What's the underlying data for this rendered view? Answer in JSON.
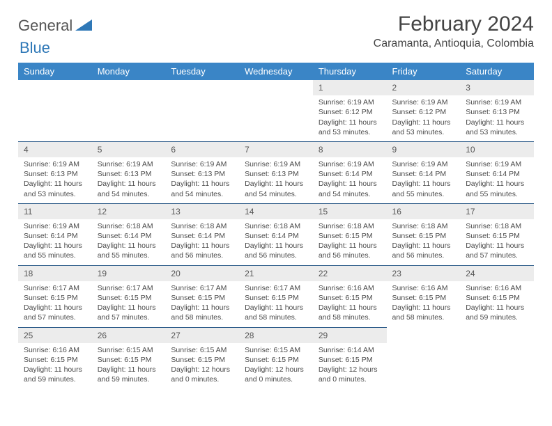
{
  "brand": {
    "word1": "General",
    "word2": "Blue"
  },
  "title": "February 2024",
  "location": "Caramanta, Antioquia, Colombia",
  "colors": {
    "header_bg": "#3a85c6",
    "header_text": "#ffffff",
    "daynum_bg": "#ececec",
    "row_divider": "#2f5d8a",
    "body_text": "#4a4a4a",
    "logo_gray": "#555555",
    "logo_blue": "#2f78b7"
  },
  "weekdays": [
    "Sunday",
    "Monday",
    "Tuesday",
    "Wednesday",
    "Thursday",
    "Friday",
    "Saturday"
  ],
  "weeks": [
    [
      null,
      null,
      null,
      null,
      {
        "n": "1",
        "sr": "Sunrise: 6:19 AM",
        "ss": "Sunset: 6:12 PM",
        "dl": "Daylight: 11 hours and 53 minutes."
      },
      {
        "n": "2",
        "sr": "Sunrise: 6:19 AM",
        "ss": "Sunset: 6:12 PM",
        "dl": "Daylight: 11 hours and 53 minutes."
      },
      {
        "n": "3",
        "sr": "Sunrise: 6:19 AM",
        "ss": "Sunset: 6:13 PM",
        "dl": "Daylight: 11 hours and 53 minutes."
      }
    ],
    [
      {
        "n": "4",
        "sr": "Sunrise: 6:19 AM",
        "ss": "Sunset: 6:13 PM",
        "dl": "Daylight: 11 hours and 53 minutes."
      },
      {
        "n": "5",
        "sr": "Sunrise: 6:19 AM",
        "ss": "Sunset: 6:13 PM",
        "dl": "Daylight: 11 hours and 54 minutes."
      },
      {
        "n": "6",
        "sr": "Sunrise: 6:19 AM",
        "ss": "Sunset: 6:13 PM",
        "dl": "Daylight: 11 hours and 54 minutes."
      },
      {
        "n": "7",
        "sr": "Sunrise: 6:19 AM",
        "ss": "Sunset: 6:13 PM",
        "dl": "Daylight: 11 hours and 54 minutes."
      },
      {
        "n": "8",
        "sr": "Sunrise: 6:19 AM",
        "ss": "Sunset: 6:14 PM",
        "dl": "Daylight: 11 hours and 54 minutes."
      },
      {
        "n": "9",
        "sr": "Sunrise: 6:19 AM",
        "ss": "Sunset: 6:14 PM",
        "dl": "Daylight: 11 hours and 55 minutes."
      },
      {
        "n": "10",
        "sr": "Sunrise: 6:19 AM",
        "ss": "Sunset: 6:14 PM",
        "dl": "Daylight: 11 hours and 55 minutes."
      }
    ],
    [
      {
        "n": "11",
        "sr": "Sunrise: 6:19 AM",
        "ss": "Sunset: 6:14 PM",
        "dl": "Daylight: 11 hours and 55 minutes."
      },
      {
        "n": "12",
        "sr": "Sunrise: 6:18 AM",
        "ss": "Sunset: 6:14 PM",
        "dl": "Daylight: 11 hours and 55 minutes."
      },
      {
        "n": "13",
        "sr": "Sunrise: 6:18 AM",
        "ss": "Sunset: 6:14 PM",
        "dl": "Daylight: 11 hours and 56 minutes."
      },
      {
        "n": "14",
        "sr": "Sunrise: 6:18 AM",
        "ss": "Sunset: 6:14 PM",
        "dl": "Daylight: 11 hours and 56 minutes."
      },
      {
        "n": "15",
        "sr": "Sunrise: 6:18 AM",
        "ss": "Sunset: 6:15 PM",
        "dl": "Daylight: 11 hours and 56 minutes."
      },
      {
        "n": "16",
        "sr": "Sunrise: 6:18 AM",
        "ss": "Sunset: 6:15 PM",
        "dl": "Daylight: 11 hours and 56 minutes."
      },
      {
        "n": "17",
        "sr": "Sunrise: 6:18 AM",
        "ss": "Sunset: 6:15 PM",
        "dl": "Daylight: 11 hours and 57 minutes."
      }
    ],
    [
      {
        "n": "18",
        "sr": "Sunrise: 6:17 AM",
        "ss": "Sunset: 6:15 PM",
        "dl": "Daylight: 11 hours and 57 minutes."
      },
      {
        "n": "19",
        "sr": "Sunrise: 6:17 AM",
        "ss": "Sunset: 6:15 PM",
        "dl": "Daylight: 11 hours and 57 minutes."
      },
      {
        "n": "20",
        "sr": "Sunrise: 6:17 AM",
        "ss": "Sunset: 6:15 PM",
        "dl": "Daylight: 11 hours and 58 minutes."
      },
      {
        "n": "21",
        "sr": "Sunrise: 6:17 AM",
        "ss": "Sunset: 6:15 PM",
        "dl": "Daylight: 11 hours and 58 minutes."
      },
      {
        "n": "22",
        "sr": "Sunrise: 6:16 AM",
        "ss": "Sunset: 6:15 PM",
        "dl": "Daylight: 11 hours and 58 minutes."
      },
      {
        "n": "23",
        "sr": "Sunrise: 6:16 AM",
        "ss": "Sunset: 6:15 PM",
        "dl": "Daylight: 11 hours and 58 minutes."
      },
      {
        "n": "24",
        "sr": "Sunrise: 6:16 AM",
        "ss": "Sunset: 6:15 PM",
        "dl": "Daylight: 11 hours and 59 minutes."
      }
    ],
    [
      {
        "n": "25",
        "sr": "Sunrise: 6:16 AM",
        "ss": "Sunset: 6:15 PM",
        "dl": "Daylight: 11 hours and 59 minutes."
      },
      {
        "n": "26",
        "sr": "Sunrise: 6:15 AM",
        "ss": "Sunset: 6:15 PM",
        "dl": "Daylight: 11 hours and 59 minutes."
      },
      {
        "n": "27",
        "sr": "Sunrise: 6:15 AM",
        "ss": "Sunset: 6:15 PM",
        "dl": "Daylight: 12 hours and 0 minutes."
      },
      {
        "n": "28",
        "sr": "Sunrise: 6:15 AM",
        "ss": "Sunset: 6:15 PM",
        "dl": "Daylight: 12 hours and 0 minutes."
      },
      {
        "n": "29",
        "sr": "Sunrise: 6:14 AM",
        "ss": "Sunset: 6:15 PM",
        "dl": "Daylight: 12 hours and 0 minutes."
      },
      null,
      null
    ]
  ]
}
